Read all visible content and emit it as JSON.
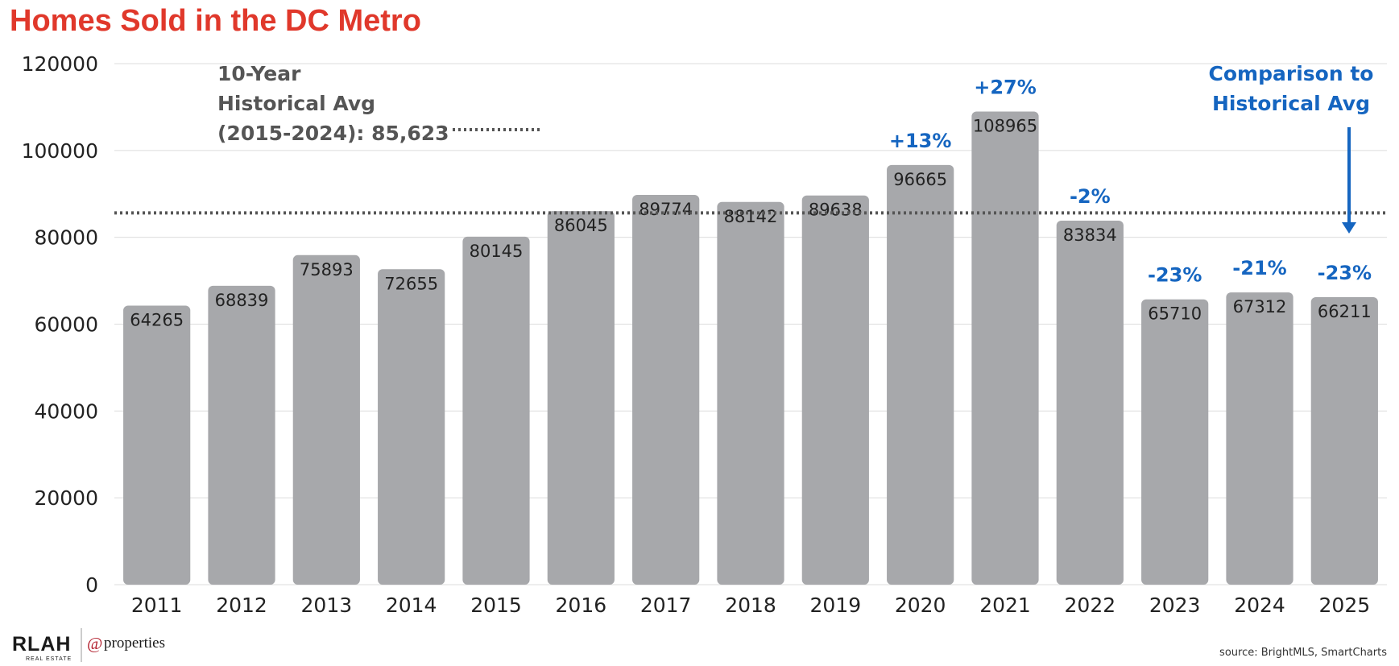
{
  "chart_data": {
    "type": "bar",
    "title": "Homes Sold in the DC Metro",
    "categories": [
      "2011",
      "2012",
      "2013",
      "2014",
      "2015",
      "2016",
      "2017",
      "2018",
      "2019",
      "2020",
      "2021",
      "2022",
      "2023",
      "2024",
      "2025"
    ],
    "values": [
      64265,
      68839,
      75893,
      72655,
      80145,
      86045,
      89774,
      88142,
      89638,
      96665,
      108965,
      83834,
      65710,
      67312,
      66211
    ],
    "data_labels": [
      "64265",
      "68839",
      "75893",
      "72655",
      "80145",
      "86045",
      "89774",
      "88142",
      "89638",
      "96665",
      "108965",
      "83834",
      "65710",
      "67312",
      "66211"
    ],
    "ylim": [
      0,
      120000
    ],
    "yticks": [
      0,
      20000,
      40000,
      60000,
      80000,
      100000,
      120000
    ],
    "ytick_labels": [
      "0",
      "20000",
      "40000",
      "60000",
      "80000",
      "100000",
      "120000"
    ],
    "grid": true,
    "bar_color": "#a7a8ab",
    "reference_line": {
      "value": 85623,
      "label_lines": [
        "10-Year",
        "Historical Avg",
        "(2015-2024): 85,623"
      ]
    },
    "comparison_labels": [
      {
        "category": "2020",
        "text": "+13%"
      },
      {
        "category": "2021",
        "text": "+27%"
      },
      {
        "category": "2022",
        "text": "-2%"
      },
      {
        "category": "2023",
        "text": "-23%"
      },
      {
        "category": "2024",
        "text": "-21%"
      },
      {
        "category": "2025",
        "text": "-23%"
      }
    ],
    "comparison_note_lines": [
      "Comparison to",
      "Historical Avg"
    ],
    "colors": {
      "title": "#e0382b",
      "comparison": "#1565c0",
      "average_text": "#555555",
      "grid": "#dcdcdc"
    }
  },
  "footer": {
    "source": "source: BrightMLS, SmartCharts",
    "logo_primary": "RLAH",
    "logo_primary_sub": "REAL ESTATE",
    "logo_at": "@",
    "logo_secondary": "properties"
  }
}
